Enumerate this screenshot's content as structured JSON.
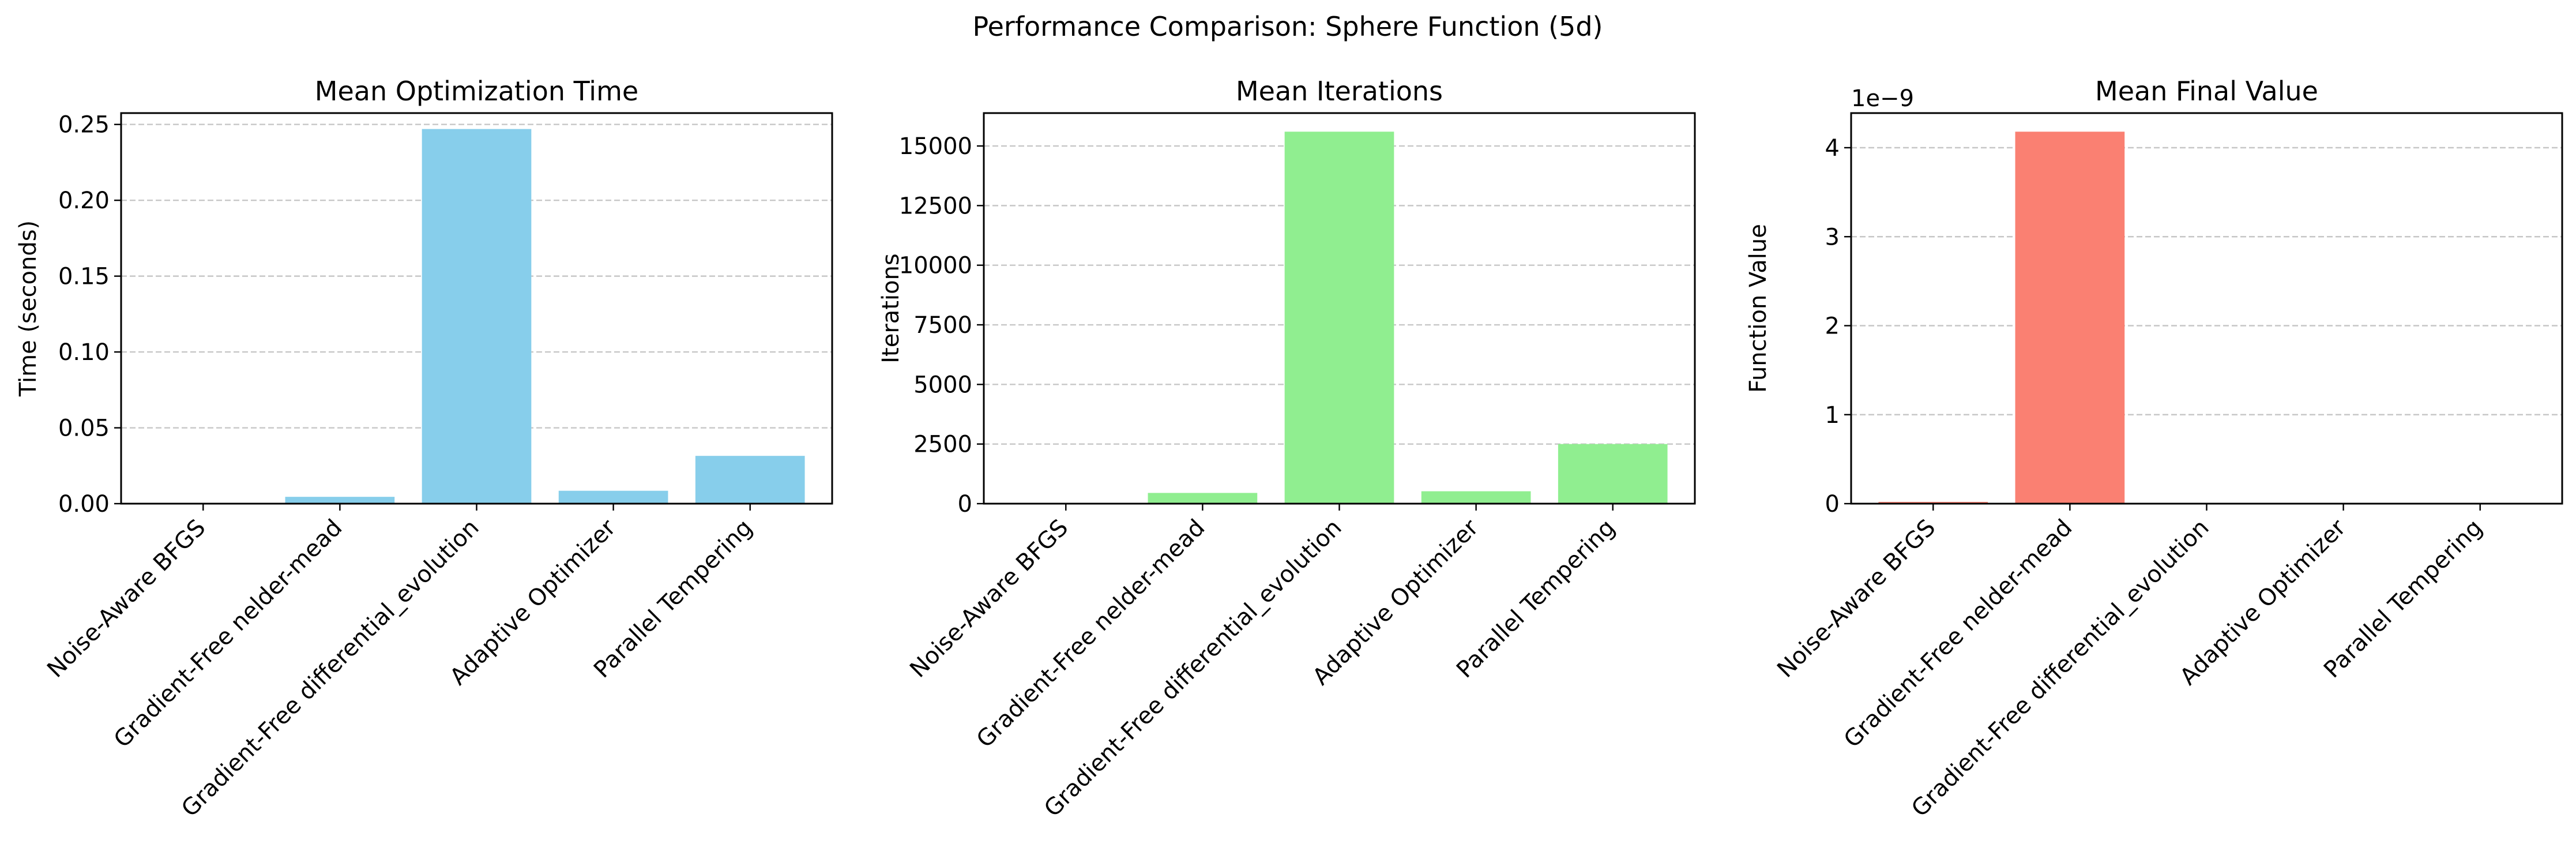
{
  "figure": {
    "title": "Performance Comparison: Sphere Function (5d)"
  },
  "chart_data": [
    {
      "type": "bar",
      "title": "Mean Optimization Time",
      "xlabel": "",
      "ylabel": "Time (seconds)",
      "categories": [
        "Noise-Aware BFGS",
        "Gradient-Free nelder-mead",
        "Gradient-Free differential_evolution",
        "Adaptive Optimizer",
        "Parallel Tempering"
      ],
      "values": [
        0.0004,
        0.0045,
        0.247,
        0.0085,
        0.0315
      ],
      "ylim": [
        0,
        0.2575
      ],
      "yticks": [
        0,
        0.05,
        0.1,
        0.15,
        0.2,
        0.25
      ],
      "ytick_labels": [
        "0.00",
        "0.05",
        "0.10",
        "0.15",
        "0.20",
        "0.25"
      ],
      "offset_label": "",
      "grid": "y-dashed",
      "color": "#87CEEB"
    },
    {
      "type": "bar",
      "title": "Mean Iterations",
      "xlabel": "",
      "ylabel": "Iterations",
      "categories": [
        "Noise-Aware BFGS",
        "Gradient-Free nelder-mead",
        "Gradient-Free differential_evolution",
        "Adaptive Optimizer",
        "Parallel Tempering"
      ],
      "values": [
        20,
        450,
        15600,
        520,
        2500
      ],
      "ylim": [
        0,
        16380
      ],
      "yticks": [
        0,
        2500,
        5000,
        7500,
        10000,
        12500,
        15000
      ],
      "ytick_labels": [
        "0",
        "2500",
        "5000",
        "7500",
        "10000",
        "12500",
        "15000"
      ],
      "offset_label": "",
      "grid": "y-dashed",
      "color": "#90EE90"
    },
    {
      "type": "bar",
      "title": "Mean Final Value",
      "xlabel": "",
      "ylabel": "Function Value",
      "categories": [
        "Noise-Aware BFGS",
        "Gradient-Free nelder-mead",
        "Gradient-Free differential_evolution",
        "Adaptive Optimizer",
        "Parallel Tempering"
      ],
      "values": [
        0.02,
        4.18,
        0.0,
        0.0,
        0.0
      ],
      "ylim": [
        0,
        4.389
      ],
      "yticks": [
        0,
        1,
        2,
        3,
        4
      ],
      "ytick_labels": [
        "0",
        "1",
        "2",
        "3",
        "4"
      ],
      "offset_label": "1e−9",
      "grid": "y-dashed",
      "color": "#FA8072"
    }
  ]
}
